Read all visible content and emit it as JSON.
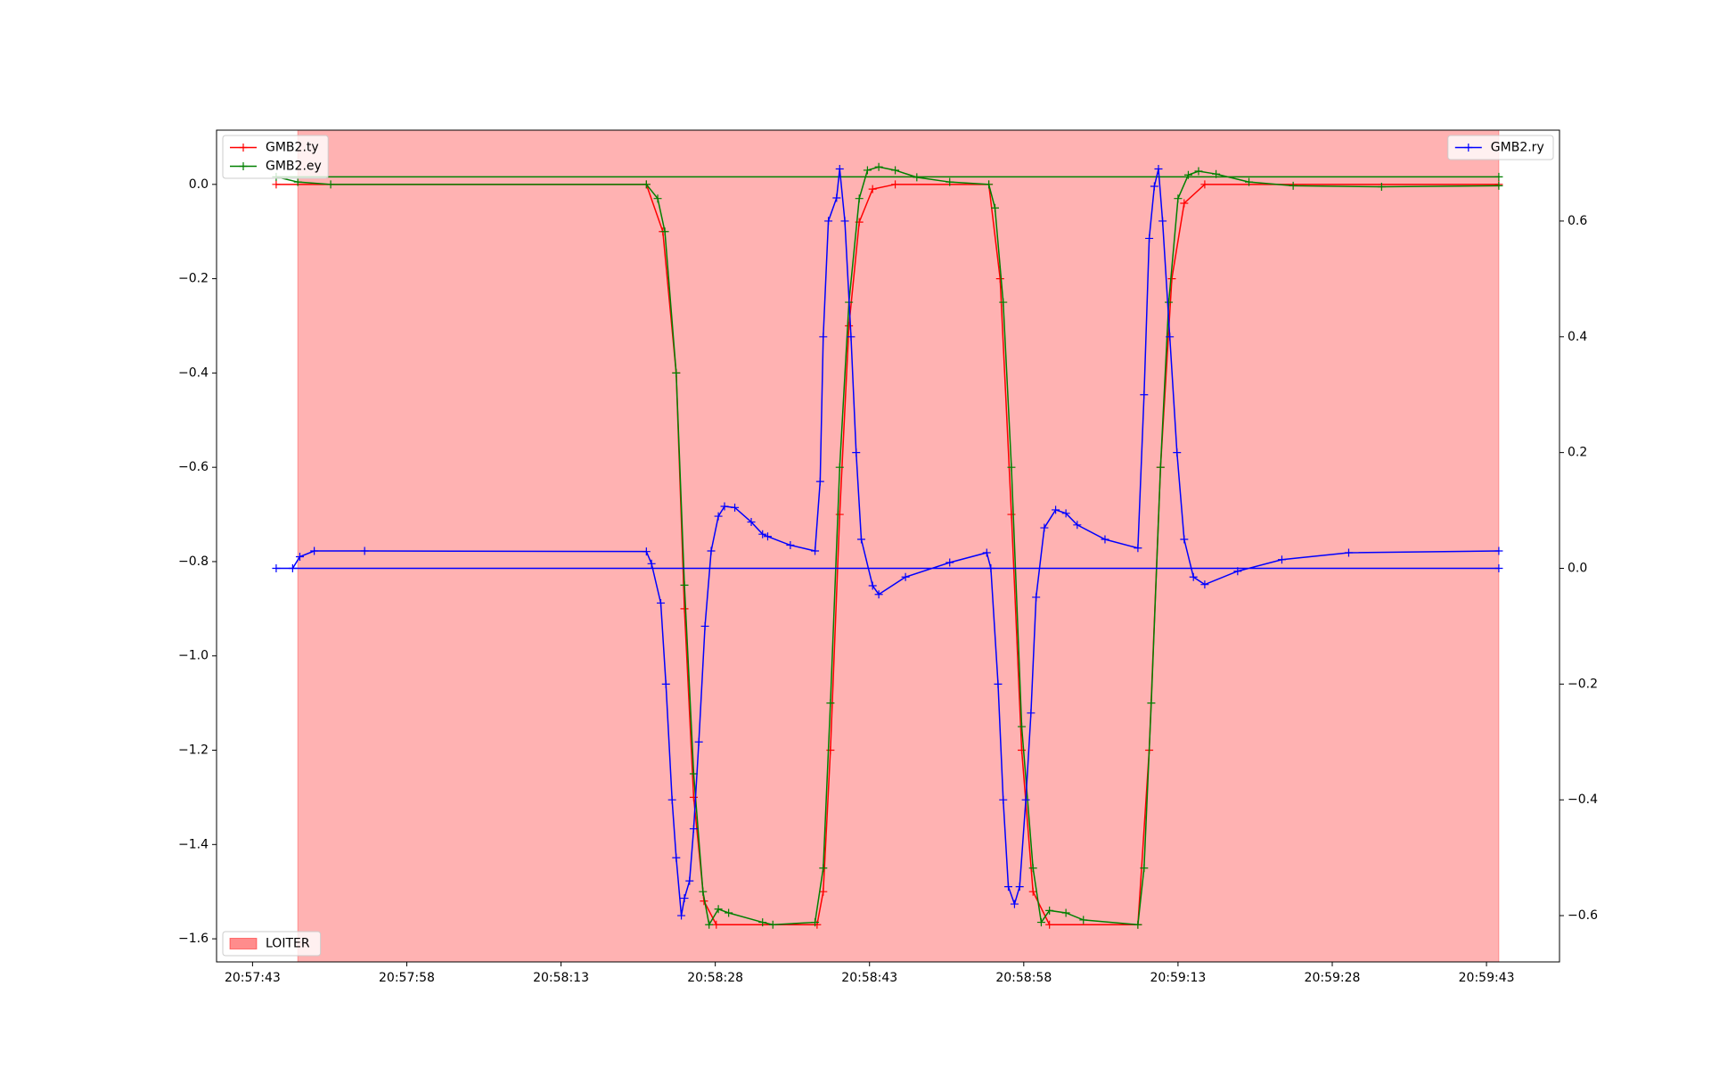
{
  "chart_data": {
    "type": "line",
    "marker": "+",
    "xlim": [
      75459.5,
      75590.1
    ],
    "ylim": [
      -1.649,
      0.115
    ],
    "y2lim": [
      -0.68,
      0.757
    ],
    "xticks": [
      {
        "value": 75463,
        "label": "20:57:43"
      },
      {
        "value": 75478,
        "label": "20:57:58"
      },
      {
        "value": 75493,
        "label": "20:58:13"
      },
      {
        "value": 75508,
        "label": "20:58:28"
      },
      {
        "value": 75523,
        "label": "20:58:43"
      },
      {
        "value": 75538,
        "label": "20:58:58"
      },
      {
        "value": 75553,
        "label": "20:59:13"
      },
      {
        "value": 75568,
        "label": "20:59:28"
      },
      {
        "value": 75583,
        "label": "20:59:43"
      }
    ],
    "yticks": [
      {
        "value": -1.6,
        "label": "−1.6"
      },
      {
        "value": -1.4,
        "label": "−1.4"
      },
      {
        "value": -1.2,
        "label": "−1.2"
      },
      {
        "value": -1.0,
        "label": "−1.0"
      },
      {
        "value": -0.8,
        "label": "−0.8"
      },
      {
        "value": -0.6,
        "label": "−0.6"
      },
      {
        "value": -0.4,
        "label": "−0.4"
      },
      {
        "value": -0.2,
        "label": "−0.2"
      },
      {
        "value": 0,
        "label": "0.0"
      }
    ],
    "y2ticks": [
      {
        "value": -0.6,
        "label": "−0.6"
      },
      {
        "value": -0.4,
        "label": "−0.4"
      },
      {
        "value": -0.2,
        "label": "−0.2"
      },
      {
        "value": 0,
        "label": "0.0"
      },
      {
        "value": 0.2,
        "label": "0.2"
      },
      {
        "value": 0.4,
        "label": "0.4"
      },
      {
        "value": 0.6,
        "label": "0.6"
      }
    ],
    "spans": [
      {
        "name": "LOITER",
        "color": "#ff0000",
        "start": 75467.4,
        "end": 75584.2,
        "legend": "lower left"
      }
    ],
    "series": [
      {
        "name": "GMB2.ty",
        "color": "#ff0000",
        "legend": "upper left",
        "x": [
          75465.3,
          75501.3,
          75502.9,
          75504.2,
          75505,
          75505.9,
          75506.9,
          75508.1,
          75517.9,
          75518.5,
          75519.2,
          75520.1,
          75521,
          75522,
          75523.3,
          75525.5,
          75534.6,
          75535.7,
          75536.8,
          75537.8,
          75538.9,
          75540.5,
          75549.1,
          75550.2,
          75551.3,
          75552.4,
          75553.6,
          75555.6,
          75584.2
        ],
        "values": [
          0,
          0,
          -0.1,
          -0.4,
          -0.9,
          -1.3,
          -1.52,
          -1.57,
          -1.57,
          -1.5,
          -1.2,
          -0.7,
          -0.3,
          -0.08,
          -0.01,
          0,
          0,
          -0.2,
          -0.7,
          -1.2,
          -1.5,
          -1.57,
          -1.57,
          -1.2,
          -0.6,
          -0.2,
          -0.04,
          0,
          0
        ]
      },
      {
        "name": "GMB2.ey",
        "color": "#008000",
        "legend": "upper left",
        "x": [
          75584.2,
          75465.3,
          75467.4,
          75470.6,
          75501.3,
          75502.4,
          75503.1,
          75504.2,
          75505,
          75505.9,
          75506.8,
          75507.4,
          75508.3,
          75509.3,
          75512.6,
          75513.6,
          75517.7,
          75518.5,
          75519.2,
          75520.1,
          75521,
          75522,
          75522.8,
          75523.9,
          75525.5,
          75527.6,
          75530.8,
          75534.6,
          75535.2,
          75536,
          75536.8,
          75537.8,
          75538.9,
          75539.7,
          75540.5,
          75542.1,
          75543.8,
          75549.1,
          75549.7,
          75550.4,
          75551.3,
          75552.1,
          75553,
          75554,
          75555,
          75556.7,
          75559.9,
          75564.2,
          75572.8,
          75584.2
        ],
        "values": [
          0.016,
          0.016,
          0.005,
          0,
          0,
          -0.03,
          -0.1,
          -0.4,
          -0.85,
          -1.25,
          -1.5,
          -1.57,
          -1.537,
          -1.545,
          -1.565,
          -1.57,
          -1.565,
          -1.45,
          -1.1,
          -0.6,
          -0.25,
          -0.03,
          0.03,
          0.037,
          0.03,
          0.015,
          0.005,
          0,
          -0.05,
          -0.25,
          -0.6,
          -1.15,
          -1.45,
          -1.565,
          -1.54,
          -1.545,
          -1.56,
          -1.57,
          -1.45,
          -1.1,
          -0.6,
          -0.25,
          -0.03,
          0.02,
          0.028,
          0.022,
          0.005,
          -0.003,
          -0.005,
          -0.003
        ]
      },
      {
        "name": "GMB2.ry",
        "color": "#0000ff",
        "legend": "upper right",
        "axis": "y2",
        "x": [
          75584.2,
          75465.3,
          75466.9,
          75467.6,
          75469,
          75473.9,
          75501.3,
          75501.8,
          75502.7,
          75503.2,
          75503.8,
          75504.2,
          75504.7,
          75505,
          75505.5,
          75505.9,
          75506.4,
          75507,
          75507.6,
          75508.3,
          75508.9,
          75509.9,
          75511.5,
          75512.6,
          75513.1,
          75515.3,
          75517.7,
          75518.2,
          75518.5,
          75519,
          75519.8,
          75520.1,
          75520.6,
          75521.2,
          75521.7,
          75522.2,
          75523.3,
          75523.9,
          75526.5,
          75530.8,
          75534.4,
          75534.8,
          75535.5,
          75536,
          75536.5,
          75537.1,
          75537.6,
          75538.2,
          75538.7,
          75539.2,
          75540,
          75541.1,
          75542.1,
          75543.2,
          75545.9,
          75549.1,
          75549.7,
          75550.2,
          75550.7,
          75551.1,
          75551.5,
          75552.2,
          75552.9,
          75553.6,
          75554.5,
          75555.6,
          75558.8,
          75563.1,
          75569.6,
          75584.2
        ],
        "values": [
          0,
          0,
          0,
          0.02,
          0.03,
          0.03,
          0.029,
          0.008,
          -0.06,
          -0.2,
          -0.4,
          -0.5,
          -0.6,
          -0.57,
          -0.54,
          -0.45,
          -0.3,
          -0.1,
          0.03,
          0.09,
          0.107,
          0.105,
          0.08,
          0.059,
          0.055,
          0.04,
          0.03,
          0.15,
          0.4,
          0.6,
          0.64,
          0.69,
          0.6,
          0.4,
          0.2,
          0.05,
          -0.03,
          -0.045,
          -0.015,
          0.01,
          0.027,
          0,
          -0.2,
          -0.4,
          -0.55,
          -0.58,
          -0.55,
          -0.4,
          -0.25,
          -0.05,
          0.07,
          0.101,
          0.095,
          0.075,
          0.05,
          0.035,
          0.3,
          0.57,
          0.66,
          0.69,
          0.6,
          0.4,
          0.2,
          0.05,
          -0.015,
          -0.028,
          -0.005,
          0.015,
          0.027,
          0.03
        ]
      }
    ]
  }
}
